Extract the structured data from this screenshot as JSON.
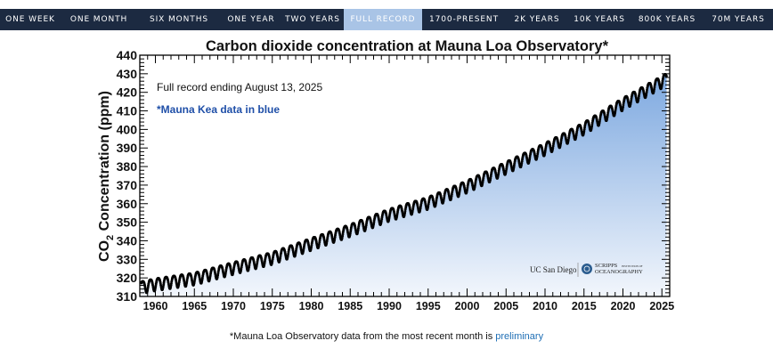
{
  "tabs": [
    {
      "label": "ONE WEEK"
    },
    {
      "label": "ONE MONTH"
    },
    {
      "label": "SIX MONTHS"
    },
    {
      "label": "ONE YEAR"
    },
    {
      "label": "TWO YEARS"
    },
    {
      "label": "FULL RECORD",
      "active": true
    },
    {
      "label": "1700-PRESENT"
    },
    {
      "label": "2K YEARS"
    },
    {
      "label": "10K YEARS"
    },
    {
      "label": "800K YEARS"
    },
    {
      "label": "70M YEARS"
    }
  ],
  "colors": {
    "tabbar": "#1c2a41",
    "tab_active": "#a9c4e6",
    "area_top": "#7ea9e0",
    "area_bottom": "#f2f6fc",
    "data_points": "#000000",
    "note_blue": "#1f4fa8",
    "link": "#1f6fb5"
  },
  "chart_data": {
    "type": "scatter",
    "title": "Carbon dioxide concentration at Mauna Loa Observatory*",
    "ylabel_prefix": "CO",
    "ylabel_sub": "2",
    "ylabel_suffix": " Concentration (ppm)",
    "xlim": [
      1958,
      2026
    ],
    "ylim": [
      310,
      440
    ],
    "xticks": [
      1960,
      1965,
      1970,
      1975,
      1980,
      1985,
      1990,
      1995,
      2000,
      2005,
      2010,
      2015,
      2020,
      2025
    ],
    "yticks": [
      310,
      320,
      330,
      340,
      350,
      360,
      370,
      380,
      390,
      400,
      410,
      420,
      430,
      440
    ],
    "grid": false,
    "fill_under_curve": true,
    "seasonal_amplitude_ppm": 3.3,
    "trend": {
      "x": [
        1958.2,
        1960,
        1965,
        1970,
        1975,
        1980,
        1985,
        1990,
        1995,
        2000,
        2005,
        2010,
        2015,
        2020,
        2025.6
      ],
      "y": [
        315.3,
        316.9,
        320.0,
        325.7,
        331.1,
        338.7,
        346.1,
        354.4,
        360.8,
        369.7,
        379.8,
        389.9,
        401.0,
        414.2,
        427.5
      ]
    },
    "annotations": {
      "record_note": "Full record ending August 13, 2025",
      "mauna_kea_note": "*Mauna Kea data in blue"
    },
    "logos": {
      "ucsd": "UC San Diego",
      "scripps_line1": "SCRIPPS",
      "scripps_small": "INSTITUTION OF",
      "scripps_line2": "OCEANOGRAPHY"
    }
  },
  "footnote": {
    "text": "*Mauna Loa Observatory data from the most recent month is ",
    "link": "preliminary"
  }
}
